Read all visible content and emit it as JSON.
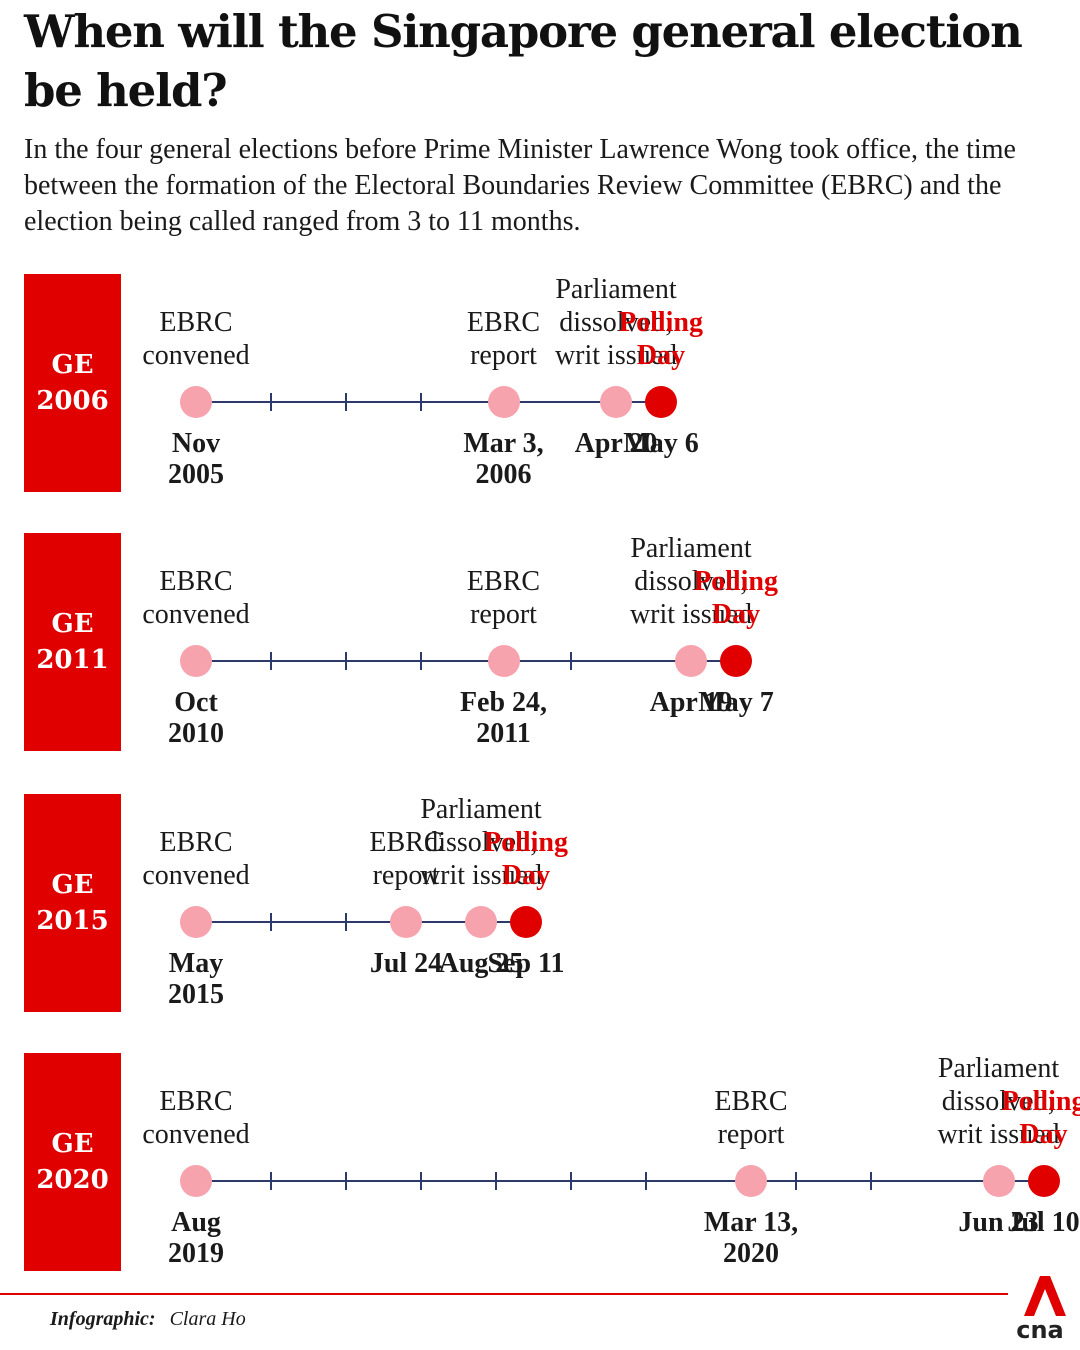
{
  "title": "When will the Singapore general election be held?",
  "subtitle": "In the four general elections before Prime Minister Lawrence Wong took office, the time between the formation of the Electoral Boundaries Review Committee (EBRC) and the election being called ranged from 3 to 11 months.",
  "colors": {
    "accent": "#e00000",
    "milestone_dot": "#f7a3ad",
    "timeline": "#2b3a6b"
  },
  "chart_data": [
    {
      "type": "timeline",
      "title": "GE 2006",
      "badge": [
        "GE",
        "2006"
      ],
      "months_total": 6,
      "events": [
        {
          "label": [
            "EBRC",
            "convened"
          ],
          "date": [
            "Nov",
            "2005"
          ],
          "month": 0,
          "kind": "milestone"
        },
        {
          "label": [
            "EBRC",
            "report"
          ],
          "date": [
            "Mar 3,",
            "2006"
          ],
          "month": 4.1,
          "kind": "milestone"
        },
        {
          "label": [
            "Parliament",
            "dissolved;",
            "writ issued"
          ],
          "date": [
            "Apr 20"
          ],
          "month": 5.6,
          "kind": "milestone"
        },
        {
          "label": [
            "Polling",
            "Day"
          ],
          "date": [
            "May 6"
          ],
          "month": 6.2,
          "kind": "polling"
        }
      ],
      "ticks": [
        1,
        2,
        3
      ]
    },
    {
      "type": "timeline",
      "title": "GE 2011",
      "badge": [
        "GE",
        "2011"
      ],
      "months_total": 7,
      "events": [
        {
          "label": [
            "EBRC",
            "convened"
          ],
          "date": [
            "Oct",
            "2010"
          ],
          "month": 0,
          "kind": "milestone"
        },
        {
          "label": [
            "EBRC",
            "report"
          ],
          "date": [
            "Feb 24,",
            "2011"
          ],
          "month": 4.1,
          "kind": "milestone"
        },
        {
          "label": [
            "Parliament",
            "dissolved;",
            "writ issued"
          ],
          "date": [
            "Apr 19"
          ],
          "month": 6.6,
          "kind": "milestone"
        },
        {
          "label": [
            "Polling",
            "Day"
          ],
          "date": [
            "May 7"
          ],
          "month": 7.2,
          "kind": "polling"
        }
      ],
      "ticks": [
        1,
        2,
        3,
        5
      ]
    },
    {
      "type": "timeline",
      "title": "GE 2015",
      "badge": [
        "GE",
        "2015"
      ],
      "months_total": 4,
      "events": [
        {
          "label": [
            "EBRC",
            "convened"
          ],
          "date": [
            "May",
            "2015"
          ],
          "month": 0,
          "kind": "milestone"
        },
        {
          "label": [
            "EBRC",
            "report"
          ],
          "date": [
            "Jul 24"
          ],
          "month": 2.8,
          "kind": "milestone"
        },
        {
          "label": [
            "Parliament",
            "dissolved;",
            "writ issued"
          ],
          "date": [
            "Aug 25"
          ],
          "month": 3.8,
          "kind": "milestone"
        },
        {
          "label": [
            "Polling",
            "Day"
          ],
          "date": [
            "Sep 11"
          ],
          "month": 4.4,
          "kind": "polling"
        }
      ],
      "ticks": [
        1,
        2
      ]
    },
    {
      "type": "timeline",
      "title": "GE 2020",
      "badge": [
        "GE",
        "2020"
      ],
      "months_total": 11,
      "events": [
        {
          "label": [
            "EBRC",
            "convened"
          ],
          "date": [
            "Aug",
            "2019"
          ],
          "month": 0,
          "kind": "milestone"
        },
        {
          "label": [
            "EBRC",
            "report"
          ],
          "date": [
            "Mar 13,",
            "2020"
          ],
          "month": 7.4,
          "kind": "milestone"
        },
        {
          "label": [
            "Parliament",
            "dissolved;",
            "writ issued"
          ],
          "date": [
            "Jun 23"
          ],
          "month": 10.7,
          "kind": "milestone"
        },
        {
          "label": [
            "Polling",
            "Day"
          ],
          "date": [
            "Jul 10"
          ],
          "month": 11.3,
          "kind": "polling"
        }
      ],
      "ticks": [
        1,
        2,
        3,
        4,
        5,
        6,
        8,
        9
      ]
    }
  ],
  "footer": {
    "credit_label": "Infographic:",
    "credit_name": "Clara Ho",
    "logo_text": "cna"
  }
}
